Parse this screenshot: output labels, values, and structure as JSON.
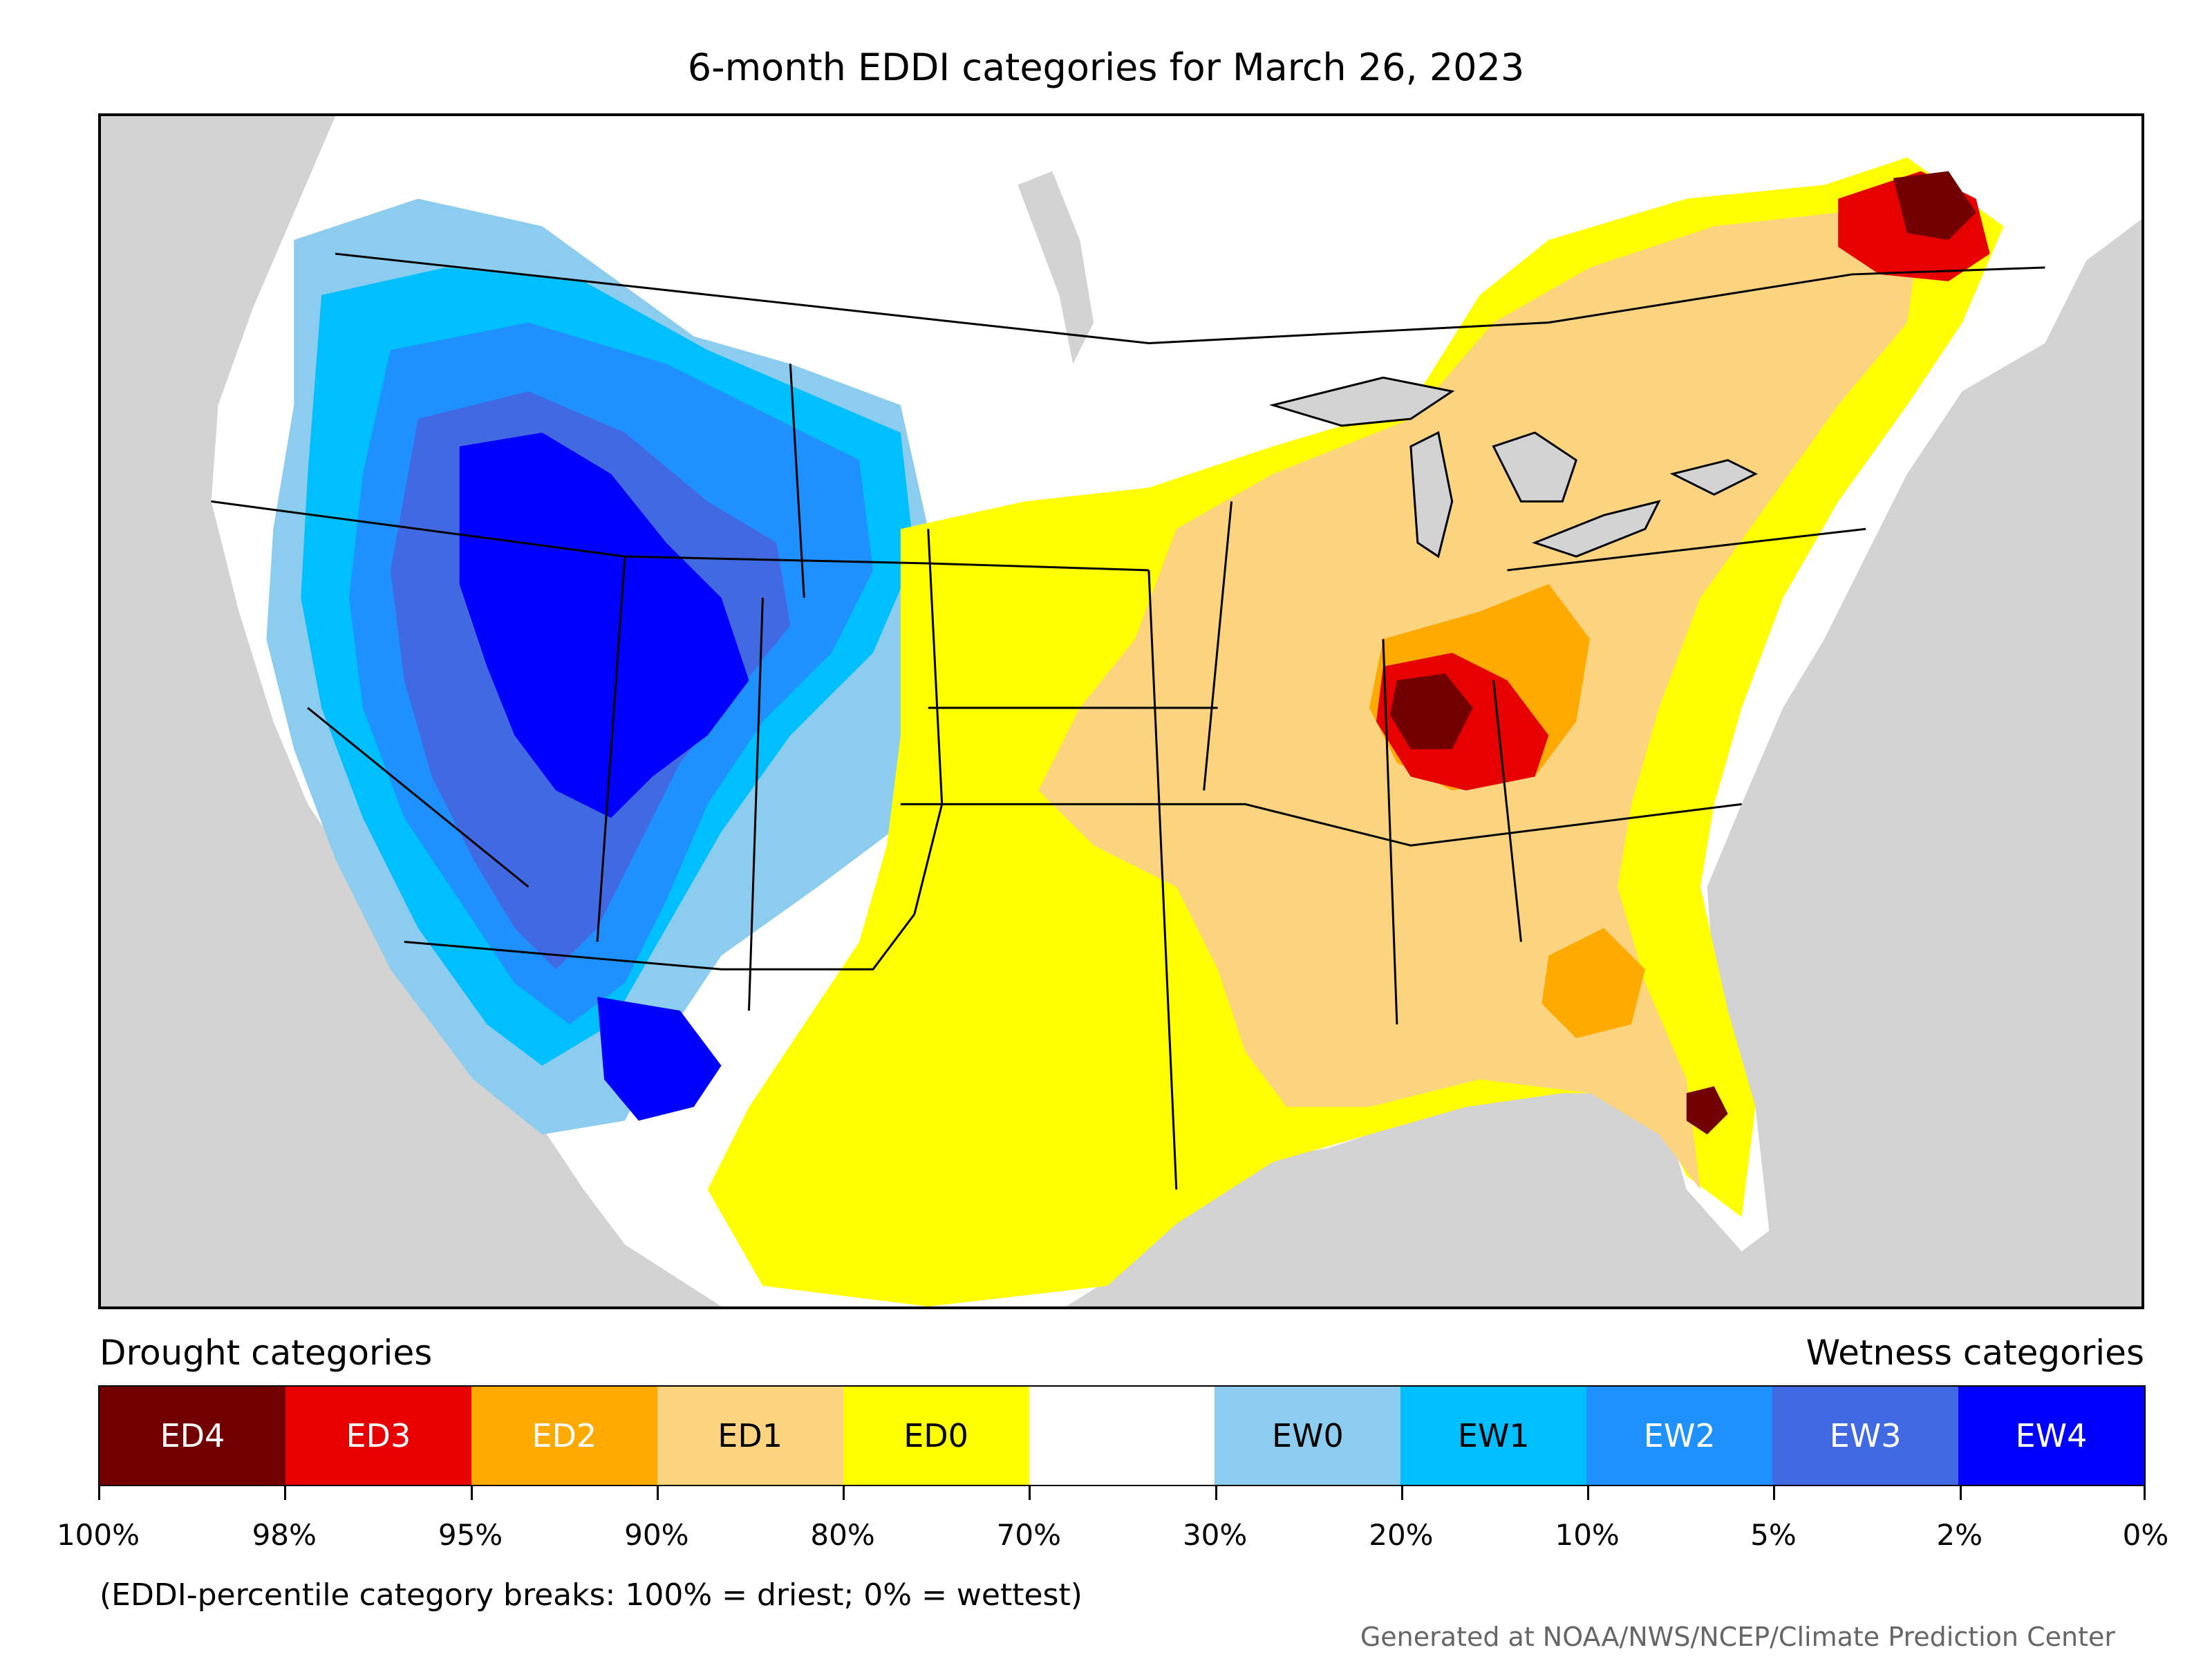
{
  "title": "6-month EDDI categories for March 26, 2023",
  "legend": {
    "drought_label": "Drought categories",
    "wetness_label": "Wetness categories",
    "categories": [
      {
        "label": "ED4",
        "color": "#730000",
        "text_color": "#ffffff"
      },
      {
        "label": "ED3",
        "color": "#e60000",
        "text_color": "#ffffff"
      },
      {
        "label": "ED2",
        "color": "#ffaa00",
        "text_color": "#ffffff"
      },
      {
        "label": "ED1",
        "color": "#fcd37f",
        "text_color": "#000000"
      },
      {
        "label": "ED0",
        "color": "#ffff00",
        "text_color": "#000000"
      },
      {
        "label": "",
        "color": "#ffffff",
        "text_color": "#000000"
      },
      {
        "label": "EW0",
        "color": "#8ccdef",
        "text_color": "#000000"
      },
      {
        "label": "EW1",
        "color": "#00bfff",
        "text_color": "#000000"
      },
      {
        "label": "EW2",
        "color": "#1e90ff",
        "text_color": "#ffffff"
      },
      {
        "label": "EW3",
        "color": "#4169e1",
        "text_color": "#ffffff"
      },
      {
        "label": "EW4",
        "color": "#0000ff",
        "text_color": "#ffffff"
      }
    ],
    "tick_labels": [
      "100%",
      "98%",
      "95%",
      "90%",
      "80%",
      "70%",
      "30%",
      "20%",
      "10%",
      "5%",
      "2%",
      "0%"
    ]
  },
  "note": "(EDDI-percentile category breaks: 100% = driest; 0% = wettest)",
  "credit": "Generated at NOAA/NWS/NCEP/Climate Prediction Center",
  "colors": {
    "background": "#d3d3d3",
    "water": "#d3d3d3",
    "land": "#ffffff",
    "border": "#000000"
  }
}
